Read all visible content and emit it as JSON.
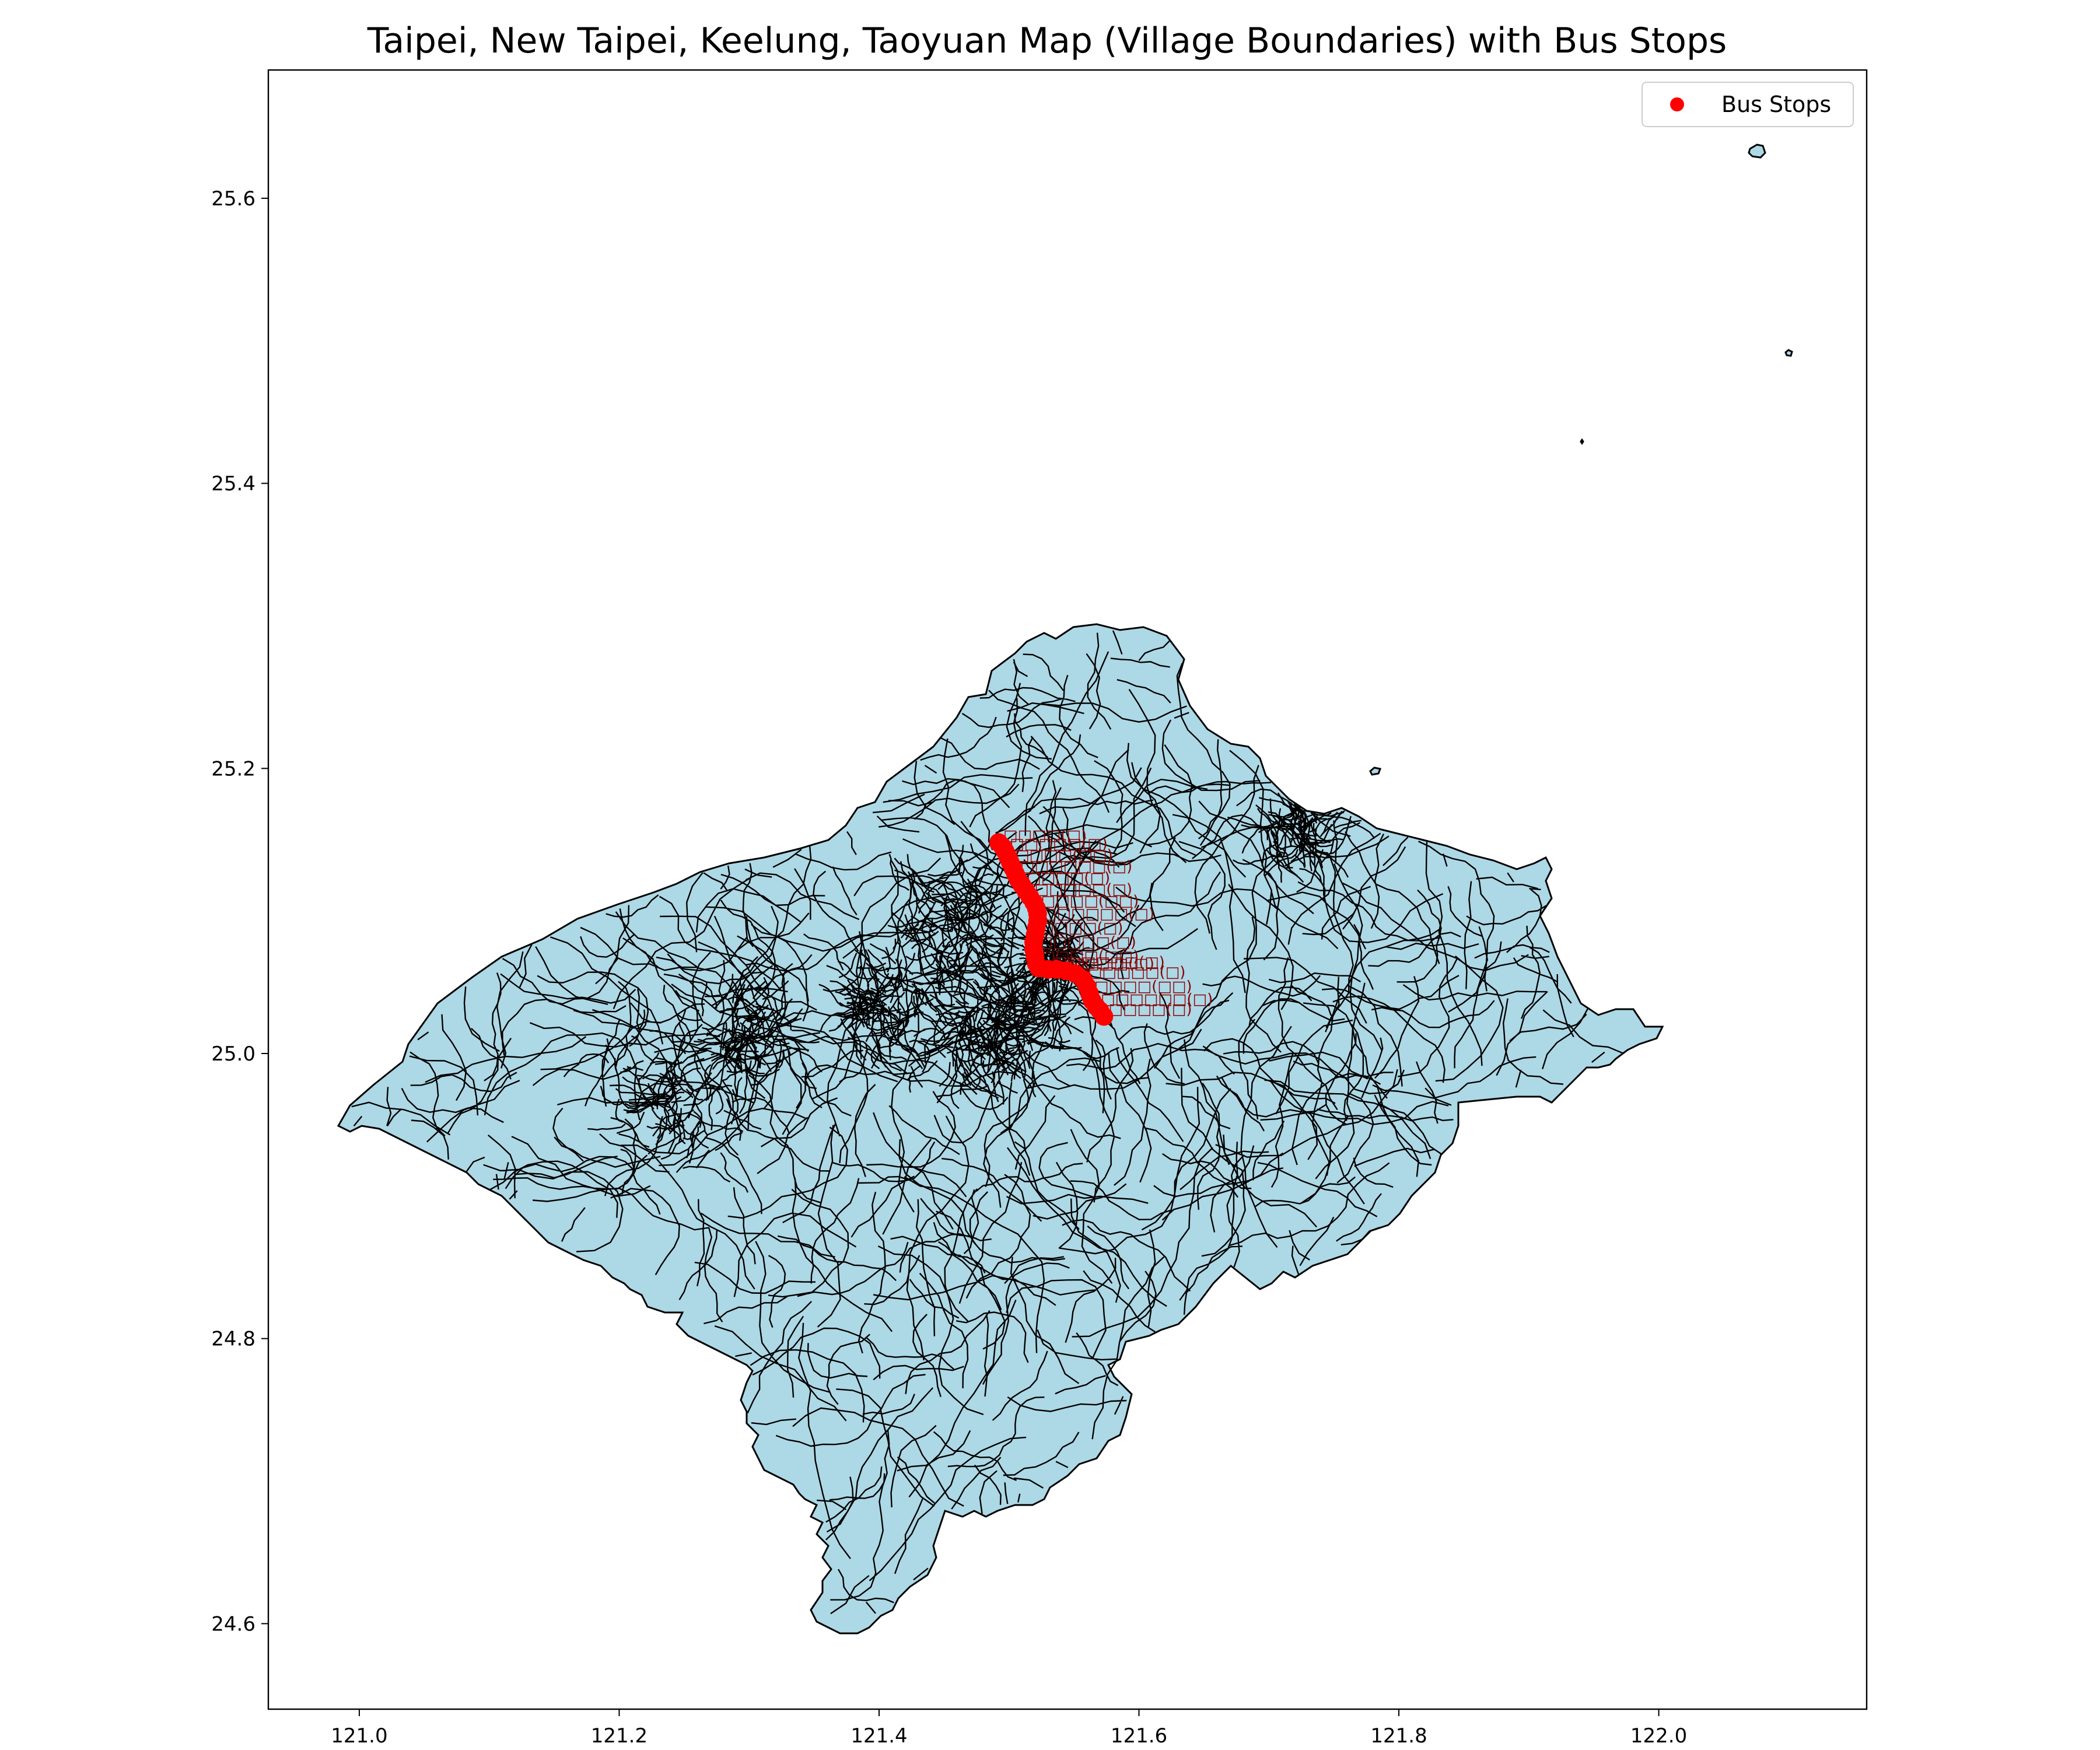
{
  "title": "Taipei, New Taipei, Keelung, Taoyuan Map (Village Boundaries) with Bus Stops",
  "colors": {
    "land_fill": "#add8e6",
    "boundary": "#000000",
    "bus_stop": "#ff0000",
    "stop_label": "#8b0000"
  },
  "legend": {
    "label": "Bus Stops",
    "position": "top-right"
  },
  "chart_data": {
    "type": "map",
    "xlim": [
      120.93,
      122.16
    ],
    "ylim": [
      24.54,
      25.69
    ],
    "xticks": [
      "121.0",
      "121.2",
      "121.4",
      "121.6",
      "121.8",
      "122.0"
    ],
    "yticks": [
      "24.6",
      "24.8",
      "25.0",
      "25.2",
      "25.4",
      "25.6"
    ],
    "xlabel": "",
    "ylabel": "",
    "series": [
      {
        "name": "Bus Stops",
        "marker": "circle",
        "points": [
          [
            121.492,
            25.148
          ],
          [
            121.495,
            25.145
          ],
          [
            121.497,
            25.142
          ],
          [
            121.499,
            25.138
          ],
          [
            121.501,
            25.134
          ],
          [
            121.503,
            25.13
          ],
          [
            121.505,
            25.126
          ],
          [
            121.507,
            25.122
          ],
          [
            121.51,
            25.118
          ],
          [
            121.513,
            25.114
          ],
          [
            121.516,
            25.11
          ],
          [
            121.519,
            25.106
          ],
          [
            121.521,
            25.102
          ],
          [
            121.522,
            25.098
          ],
          [
            121.522,
            25.093
          ],
          [
            121.521,
            25.088
          ],
          [
            121.52,
            25.083
          ],
          [
            121.519,
            25.078
          ],
          [
            121.519,
            25.073
          ],
          [
            121.52,
            25.068
          ],
          [
            121.521,
            25.063
          ],
          [
            121.523,
            25.06
          ],
          [
            121.53,
            25.059
          ],
          [
            121.537,
            25.059
          ],
          [
            121.544,
            25.058
          ],
          [
            121.551,
            25.056
          ],
          [
            121.557,
            25.052
          ],
          [
            121.56,
            25.047
          ],
          [
            121.562,
            25.042
          ],
          [
            121.564,
            25.037
          ],
          [
            121.567,
            25.033
          ],
          [
            121.57,
            25.03
          ],
          [
            121.573,
            25.026
          ]
        ]
      }
    ],
    "stop_labels": [
      "□□□□(□)",
      "□□□□□(□)",
      "□□□□(□□)",
      "□□□□□□(□)"
    ]
  }
}
